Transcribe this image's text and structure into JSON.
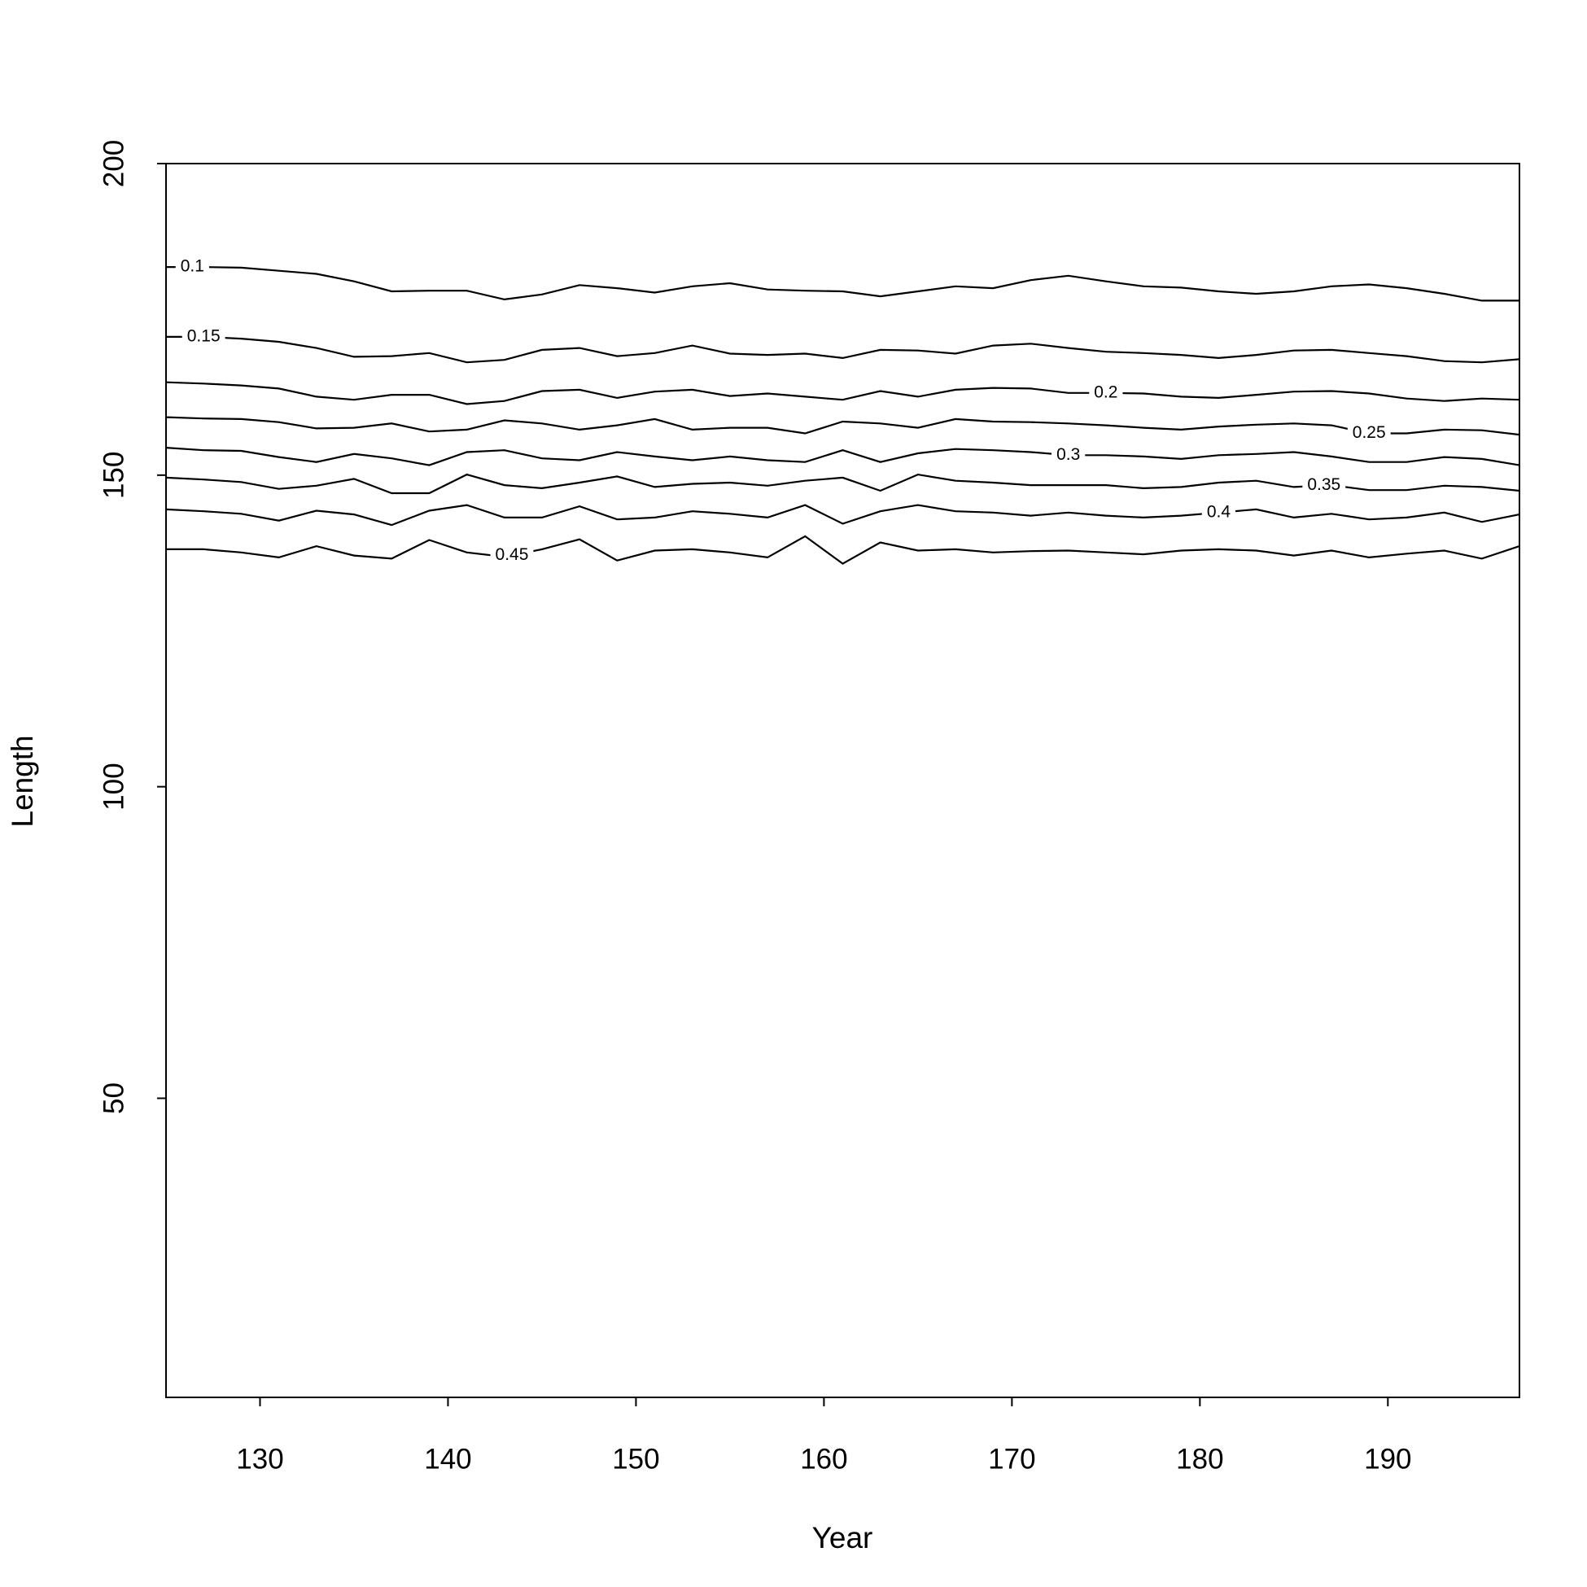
{
  "chart_data": {
    "type": "contour",
    "x_label": "Year",
    "y_label": "Length",
    "x": [
      125,
      127,
      129,
      131,
      133,
      135,
      137,
      139,
      141,
      143,
      145,
      147,
      149,
      151,
      153,
      155,
      157,
      159,
      161,
      163,
      165,
      167,
      169,
      171,
      173,
      175,
      177,
      179,
      181,
      183,
      185,
      187,
      189,
      191,
      193,
      195,
      197
    ],
    "xlim": [
      125,
      197
    ],
    "ylim": [
      2,
      200
    ],
    "xticks": [
      130,
      140,
      150,
      160,
      170,
      180,
      190
    ],
    "yticks": [
      50,
      100,
      150,
      200
    ],
    "color": "#000000",
    "series": [
      {
        "name": "0.1",
        "values": [
          183.4,
          183.4,
          183.3,
          182.8,
          182.3,
          181.1,
          179.5,
          179.6,
          179.6,
          178.2,
          179.0,
          180.5,
          180.0,
          179.3,
          180.3,
          180.8,
          179.8,
          179.6,
          179.5,
          178.7,
          179.5,
          180.3,
          180.0,
          181.3,
          182.0,
          181.1,
          180.3,
          180.1,
          179.5,
          179.1,
          179.5,
          180.3,
          180.6,
          180.0,
          179.1,
          178.0,
          178.0
        ]
      },
      {
        "name": "0.15",
        "values": [
          172.2,
          172.2,
          171.9,
          171.4,
          170.4,
          169.0,
          169.1,
          169.6,
          168.1,
          168.5,
          170.1,
          170.4,
          169.1,
          169.6,
          170.8,
          169.5,
          169.3,
          169.5,
          168.8,
          170.1,
          170.0,
          169.5,
          170.8,
          171.1,
          170.4,
          169.8,
          169.6,
          169.3,
          168.8,
          169.3,
          170.0,
          170.1,
          169.6,
          169.1,
          168.3,
          168.1,
          168.6
        ]
      },
      {
        "name": "0.2",
        "values": [
          164.9,
          164.7,
          164.4,
          163.9,
          162.6,
          162.1,
          162.9,
          162.9,
          161.4,
          161.9,
          163.5,
          163.7,
          162.4,
          163.4,
          163.7,
          162.7,
          163.1,
          162.6,
          162.1,
          163.5,
          162.6,
          163.7,
          164.0,
          163.9,
          163.2,
          163.2,
          163.1,
          162.6,
          162.4,
          162.9,
          163.4,
          163.5,
          163.1,
          162.3,
          161.9,
          162.3,
          162.1
        ]
      },
      {
        "name": "0.25",
        "values": [
          159.3,
          159.1,
          159.0,
          158.5,
          157.5,
          157.6,
          158.3,
          157.0,
          157.3,
          158.8,
          158.3,
          157.3,
          158.0,
          159.0,
          157.3,
          157.6,
          157.6,
          156.7,
          158.6,
          158.3,
          157.6,
          159.0,
          158.6,
          158.5,
          158.3,
          158.0,
          157.6,
          157.3,
          157.8,
          158.1,
          158.3,
          158.0,
          156.7,
          156.7,
          157.3,
          157.2,
          156.5
        ]
      },
      {
        "name": "0.3",
        "values": [
          154.4,
          154.0,
          153.9,
          152.9,
          152.1,
          153.4,
          152.7,
          151.6,
          153.7,
          154.0,
          152.7,
          152.4,
          153.7,
          153.0,
          152.4,
          153.0,
          152.4,
          152.1,
          154.0,
          152.1,
          153.5,
          154.2,
          154.0,
          153.7,
          153.2,
          153.2,
          153.0,
          152.6,
          153.2,
          153.4,
          153.7,
          153.0,
          152.1,
          152.1,
          152.9,
          152.6,
          151.6
        ]
      },
      {
        "name": "0.35",
        "values": [
          149.6,
          149.3,
          148.9,
          147.8,
          148.3,
          149.4,
          147.1,
          147.1,
          150.1,
          148.4,
          147.9,
          148.8,
          149.8,
          148.1,
          148.6,
          148.8,
          148.3,
          149.1,
          149.6,
          147.5,
          150.1,
          149.1,
          148.8,
          148.4,
          148.4,
          148.4,
          147.9,
          148.1,
          148.8,
          149.1,
          148.1,
          148.4,
          147.6,
          147.6,
          148.3,
          148.1,
          147.5
        ]
      },
      {
        "name": "0.4",
        "values": [
          144.5,
          144.2,
          143.8,
          142.7,
          144.3,
          143.7,
          142.0,
          144.3,
          145.2,
          143.2,
          143.2,
          145.0,
          142.9,
          143.2,
          144.2,
          143.8,
          143.2,
          145.2,
          142.2,
          144.2,
          145.2,
          144.2,
          144.0,
          143.5,
          144.0,
          143.5,
          143.2,
          143.5,
          144.0,
          144.5,
          143.2,
          143.8,
          142.9,
          143.2,
          144.0,
          142.5,
          143.7
        ]
      },
      {
        "name": "0.45",
        "values": [
          138.1,
          138.1,
          137.6,
          136.8,
          138.6,
          137.1,
          136.6,
          139.6,
          137.6,
          136.9,
          138.1,
          139.7,
          136.3,
          137.9,
          138.1,
          137.6,
          136.8,
          140.2,
          135.8,
          139.2,
          137.9,
          138.1,
          137.6,
          137.8,
          137.9,
          137.6,
          137.3,
          137.9,
          138.1,
          137.9,
          137.1,
          137.9,
          136.8,
          137.4,
          137.9,
          136.6,
          138.6
        ]
      }
    ]
  }
}
